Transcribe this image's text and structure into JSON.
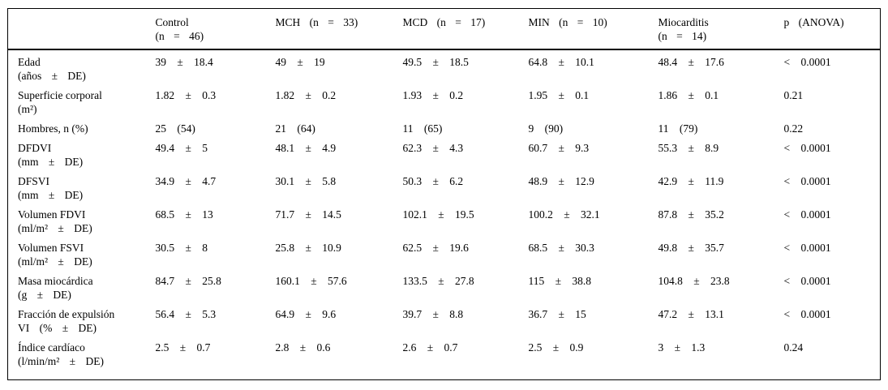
{
  "table": {
    "headers": [
      {
        "lines": [
          "",
          ""
        ]
      },
      {
        "lines": [
          "Control",
          "(n = 46)"
        ]
      },
      {
        "lines": [
          "MCH (n = 33)",
          ""
        ]
      },
      {
        "lines": [
          "MCD (n = 17)",
          ""
        ]
      },
      {
        "lines": [
          "MIN (n = 10)",
          ""
        ]
      },
      {
        "lines": [
          "Miocarditis",
          "(n = 14)"
        ]
      },
      {
        "lines": [
          "p (ANOVA)",
          ""
        ]
      }
    ],
    "rows": [
      {
        "label": [
          "Edad",
          "(años ± DE)"
        ],
        "values": [
          "39 ± 18.4",
          "49 ± 19",
          "49.5 ± 18.5",
          "64.8 ± 10.1",
          "48.4 ± 17.6"
        ],
        "p": "< 0.0001"
      },
      {
        "label": [
          "Superficie corporal",
          "(m²)"
        ],
        "values": [
          "1.82 ± 0.3",
          "1.82 ± 0.2",
          "1.93 ± 0.2",
          "1.95 ± 0.1",
          "1.86 ± 0.1"
        ],
        "p": "0.21"
      },
      {
        "label": [
          "Hombres, n (%)",
          ""
        ],
        "values": [
          "25 (54)",
          "21 (64)",
          "11 (65)",
          "9 (90)",
          "11 (79)"
        ],
        "p": "0.22"
      },
      {
        "label": [
          "DFDVI",
          "(mm ± DE)"
        ],
        "values": [
          "49.4 ± 5",
          "48.1 ± 4.9",
          "62.3 ± 4.3",
          "60.7 ± 9.3",
          "55.3 ± 8.9"
        ],
        "p": "< 0.0001"
      },
      {
        "label": [
          "DFSVI",
          "(mm ± DE)"
        ],
        "values": [
          "34.9 ± 4.7",
          "30.1 ± 5.8",
          "50.3 ± 6.2",
          "48.9 ± 12.9",
          "42.9 ± 11.9"
        ],
        "p": "< 0.0001"
      },
      {
        "label": [
          "Volumen FDVI",
          "(ml/m² ± DE)"
        ],
        "values": [
          "68.5 ± 13",
          "71.7 ± 14.5",
          "102.1 ± 19.5",
          "100.2 ± 32.1",
          "87.8 ± 35.2"
        ],
        "p": "< 0.0001"
      },
      {
        "label": [
          "Volumen FSVI",
          "(ml/m² ± DE)"
        ],
        "values": [
          "30.5 ± 8",
          "25.8 ± 10.9",
          "62.5 ± 19.6",
          "68.5 ± 30.3",
          "49.8 ± 35.7"
        ],
        "p": "< 0.0001"
      },
      {
        "label": [
          "Masa miocárdica",
          "(g ± DE)"
        ],
        "values": [
          "84.7 ± 25.8",
          "160.1 ± 57.6",
          "133.5 ± 27.8",
          "115 ± 38.8",
          "104.8 ± 23.8"
        ],
        "p": "< 0.0001"
      },
      {
        "label": [
          "Fracción de expulsión",
          "VI (% ± DE)"
        ],
        "values": [
          "56.4 ± 5.3",
          "64.9 ± 9.6",
          "39.7 ± 8.8",
          "36.7 ± 15",
          "47.2 ± 13.1"
        ],
        "p": "< 0.0001"
      },
      {
        "label": [
          "Índice cardíaco",
          "(l/min/m² ± DE)"
        ],
        "values": [
          "2.5 ± 0.7",
          "2.8 ± 0.6",
          "2.6 ± 0.7",
          "2.5 ± 0.9",
          "3 ± 1.3"
        ],
        "p": "0.24"
      }
    ]
  }
}
